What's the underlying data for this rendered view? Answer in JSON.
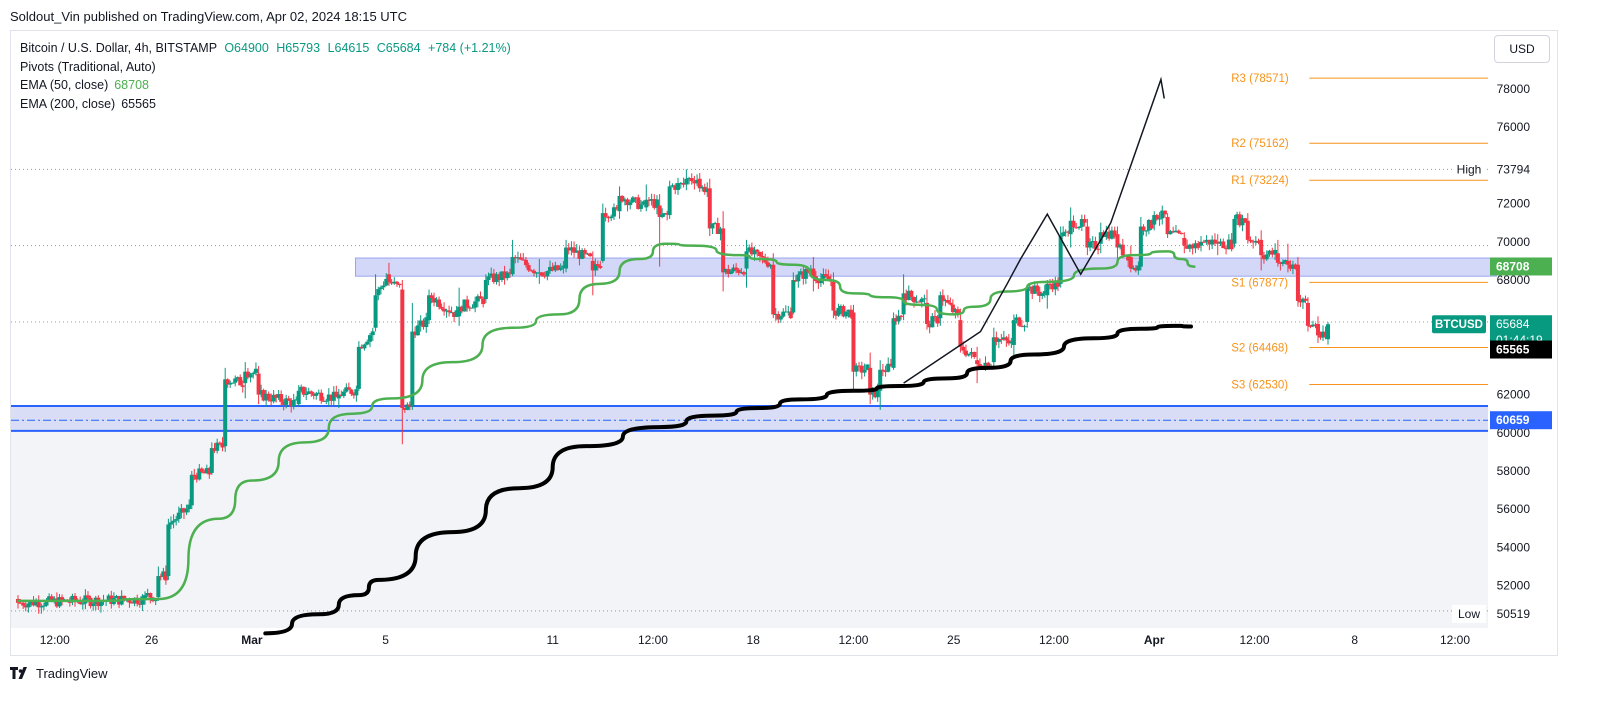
{
  "header": {
    "publisher_line": "Soldout_Vin published on TradingView.com, Apr 02, 2024 18:15 UTC"
  },
  "legend": {
    "symbol": "Bitcoin / U.S. Dollar, 4h, BITSTAMP",
    "open": "O64900",
    "high": "H65793",
    "low": "L64615",
    "close": "C65684",
    "change": "+784 (+1.21%)",
    "pivots": "Pivots (Traditional, Auto)",
    "ema50_label": "EMA (50, close)",
    "ema50_value": "68708",
    "ema200_label": "EMA (200, close)",
    "ema200_value": "65565"
  },
  "currency_button": "USD",
  "footer": {
    "brand": "TradingView"
  },
  "colors": {
    "up": "#089981",
    "down": "#f23645",
    "ema50": "#4caf50",
    "ema200": "#000000",
    "pivot": "#f7931a",
    "zone_fill": "#c5cbf5",
    "zone_border": "#2962ff"
  },
  "chart_data": {
    "type": "candlestick",
    "title": "Bitcoin / U.S. Dollar, 4h, BITSTAMP",
    "ylim": [
      49500,
      79500
    ],
    "y_ticks": [
      "78000",
      "76000",
      "72000",
      "70000",
      "68000",
      "62000",
      "60000",
      "58000",
      "56000",
      "54000",
      "52000"
    ],
    "x_ticks": [
      {
        "label": "12:00",
        "t": 0.55
      },
      {
        "label": "26",
        "t": 2.0
      },
      {
        "label": "Mar",
        "t": 3.5
      },
      {
        "label": "5",
        "t": 5.5
      },
      {
        "label": "11",
        "t": 8.0
      },
      {
        "label": "12:00",
        "t": 9.5
      },
      {
        "label": "18",
        "t": 11.0
      },
      {
        "label": "12:00",
        "t": 12.5
      },
      {
        "label": "25",
        "t": 14.0
      },
      {
        "label": "12:00",
        "t": 15.5
      },
      {
        "label": "Apr",
        "t": 17.0
      },
      {
        "label": "12:00",
        "t": 18.5
      },
      {
        "label": "8",
        "t": 20.0
      },
      {
        "label": "12:00",
        "t": 21.5
      }
    ],
    "x_range": [
      0,
      22.6
    ],
    "pivots": [
      {
        "name": "R3",
        "value": 78571,
        "label": "R3 (78571)"
      },
      {
        "name": "R2",
        "value": 75162,
        "label": "R2 (75162)"
      },
      {
        "name": "R1",
        "value": 73224,
        "label": "R1 (73224)"
      },
      {
        "name": "S1",
        "value": 67877,
        "label": "S1 (67877)"
      },
      {
        "name": "S2",
        "value": 64468,
        "label": "S2 (64468)"
      },
      {
        "name": "S3",
        "value": 62530,
        "label": "S3 (62530)"
      }
    ],
    "pivot_range": [
      17.0,
      22.0
    ],
    "dotted_levels": [
      73794,
      69800,
      65800
    ],
    "zones": [
      {
        "from": 68200,
        "to": 69150,
        "t_start": 5.05,
        "t_end": 22.0,
        "style": "lavender"
      },
      {
        "from": 60100,
        "to": 61400,
        "t_start": 0.0,
        "t_end": 22.0,
        "style": "blue"
      }
    ],
    "blue_dashdot_level": 60659,
    "ema50": [
      [
        0,
        51200
      ],
      [
        1,
        51200
      ],
      [
        2.1,
        51300
      ],
      [
        3,
        55500
      ],
      [
        3.5,
        57500
      ],
      [
        4.3,
        59500
      ],
      [
        5,
        61000
      ],
      [
        5.6,
        61800
      ],
      [
        6.5,
        63700
      ],
      [
        7.4,
        65500
      ],
      [
        8.1,
        66200
      ],
      [
        8.7,
        67800
      ],
      [
        9.3,
        69100
      ],
      [
        9.7,
        69900
      ],
      [
        10.1,
        69800
      ],
      [
        10.8,
        69300
      ],
      [
        11.1,
        69100
      ],
      [
        11.6,
        68800
      ],
      [
        12.1,
        68000
      ],
      [
        12.5,
        67300
      ],
      [
        13.0,
        67100
      ],
      [
        13.5,
        66700
      ],
      [
        14.0,
        66200
      ],
      [
        14.3,
        66600
      ],
      [
        14.8,
        67400
      ],
      [
        15.4,
        67900
      ],
      [
        16.2,
        68600
      ],
      [
        16.7,
        69300
      ],
      [
        17.2,
        69500
      ],
      [
        17.4,
        69100
      ],
      [
        17.6,
        68700
      ]
    ],
    "ema200": [
      [
        3.7,
        49500
      ],
      [
        4.5,
        50500
      ],
      [
        5.1,
        51500
      ],
      [
        5.4,
        52300
      ],
      [
        6.5,
        54800
      ],
      [
        7.5,
        57100
      ],
      [
        8.5,
        59300
      ],
      [
        9.6,
        60300
      ],
      [
        10.4,
        60900
      ],
      [
        11.1,
        61300
      ],
      [
        11.7,
        61750
      ],
      [
        12.5,
        62200
      ],
      [
        13.2,
        62450
      ],
      [
        13.9,
        62850
      ],
      [
        14.5,
        63400
      ],
      [
        15.2,
        64100
      ],
      [
        16.1,
        64950
      ],
      [
        16.8,
        65450
      ],
      [
        17.3,
        65600
      ],
      [
        17.55,
        65565
      ]
    ],
    "drawing": [
      [
        13.25,
        62600
      ],
      [
        14.4,
        65300
      ],
      [
        14.8,
        67800
      ],
      [
        15.0,
        69100
      ],
      [
        15.4,
        71450
      ],
      [
        15.9,
        68300
      ],
      [
        16.35,
        71000
      ],
      [
        16.75,
        75000
      ],
      [
        17.1,
        78500
      ],
      [
        17.15,
        77500
      ]
    ],
    "anchor_candles": [
      {
        "t": 0.0,
        "o": 51300,
        "h": 51500,
        "l": 50800,
        "c": 51100
      },
      {
        "t": 1.9,
        "o": 51300,
        "h": 51700,
        "l": 51000,
        "c": 51500
      },
      {
        "t": 2.1,
        "o": 51400,
        "h": 53000,
        "l": 51200,
        "c": 52500
      },
      {
        "t": 2.25,
        "o": 52500,
        "h": 55500,
        "l": 52300,
        "c": 55200
      },
      {
        "t": 2.6,
        "o": 56200,
        "h": 58000,
        "l": 56000,
        "c": 57800
      },
      {
        "t": 2.9,
        "o": 57900,
        "h": 59500,
        "l": 57800,
        "c": 59200
      },
      {
        "t": 3.1,
        "o": 59300,
        "h": 63400,
        "l": 59000,
        "c": 62800
      },
      {
        "t": 3.4,
        "o": 62600,
        "h": 63700,
        "l": 61800,
        "c": 63200
      },
      {
        "t": 3.6,
        "o": 63100,
        "h": 63500,
        "l": 61500,
        "c": 62000
      },
      {
        "t": 4.2,
        "o": 61500,
        "h": 62500,
        "l": 61400,
        "c": 62200
      },
      {
        "t": 4.8,
        "o": 61800,
        "h": 62300,
        "l": 61300,
        "c": 62000
      },
      {
        "t": 5.1,
        "o": 62300,
        "h": 64800,
        "l": 62200,
        "c": 64500
      },
      {
        "t": 5.35,
        "o": 65500,
        "h": 68300,
        "l": 65300,
        "c": 67200
      },
      {
        "t": 5.55,
        "o": 68300,
        "h": 68900,
        "l": 67700,
        "c": 67900
      },
      {
        "t": 5.75,
        "o": 67500,
        "h": 68000,
        "l": 59400,
        "c": 61300
      },
      {
        "t": 5.9,
        "o": 61400,
        "h": 66800,
        "l": 61200,
        "c": 65300
      },
      {
        "t": 6.15,
        "o": 65900,
        "h": 67500,
        "l": 65700,
        "c": 67200
      },
      {
        "t": 6.6,
        "o": 66100,
        "h": 67600,
        "l": 65600,
        "c": 66600
      },
      {
        "t": 7.0,
        "o": 67000,
        "h": 68300,
        "l": 66800,
        "c": 68000
      },
      {
        "t": 7.4,
        "o": 68300,
        "h": 70100,
        "l": 68200,
        "c": 69200
      },
      {
        "t": 7.8,
        "o": 68400,
        "h": 69100,
        "l": 67800,
        "c": 68400
      },
      {
        "t": 8.2,
        "o": 68600,
        "h": 70100,
        "l": 68400,
        "c": 69700
      },
      {
        "t": 8.6,
        "o": 69000,
        "h": 69500,
        "l": 67200,
        "c": 68500
      },
      {
        "t": 8.75,
        "o": 69000,
        "h": 72000,
        "l": 68900,
        "c": 71500
      },
      {
        "t": 9.0,
        "o": 71600,
        "h": 72900,
        "l": 71200,
        "c": 72400
      },
      {
        "t": 9.4,
        "o": 71800,
        "h": 73000,
        "l": 71600,
        "c": 72200
      },
      {
        "t": 9.6,
        "o": 71900,
        "h": 72500,
        "l": 68700,
        "c": 71300
      },
      {
        "t": 9.75,
        "o": 71400,
        "h": 73200,
        "l": 71200,
        "c": 72900
      },
      {
        "t": 10.0,
        "o": 73000,
        "h": 73794,
        "l": 72700,
        "c": 73300
      },
      {
        "t": 10.2,
        "o": 73300,
        "h": 73600,
        "l": 72600,
        "c": 72800
      },
      {
        "t": 10.35,
        "o": 72800,
        "h": 73300,
        "l": 70300,
        "c": 70700
      },
      {
        "t": 10.55,
        "o": 70700,
        "h": 71600,
        "l": 67400,
        "c": 68400
      },
      {
        "t": 10.9,
        "o": 68600,
        "h": 70100,
        "l": 67600,
        "c": 69500
      },
      {
        "t": 11.3,
        "o": 68800,
        "h": 69400,
        "l": 66000,
        "c": 66200
      },
      {
        "t": 11.6,
        "o": 66300,
        "h": 68400,
        "l": 66200,
        "c": 68000
      },
      {
        "t": 11.9,
        "o": 68600,
        "h": 69200,
        "l": 67400,
        "c": 68200
      },
      {
        "t": 12.2,
        "o": 67900,
        "h": 68400,
        "l": 66000,
        "c": 66400
      },
      {
        "t": 12.5,
        "o": 66300,
        "h": 66700,
        "l": 62200,
        "c": 63200
      },
      {
        "t": 12.75,
        "o": 63400,
        "h": 64200,
        "l": 61500,
        "c": 62000
      },
      {
        "t": 12.9,
        "o": 62200,
        "h": 63800,
        "l": 61200,
        "c": 63300
      },
      {
        "t": 13.1,
        "o": 63400,
        "h": 66300,
        "l": 63300,
        "c": 66000
      },
      {
        "t": 13.25,
        "o": 66200,
        "h": 68300,
        "l": 65900,
        "c": 67300
      },
      {
        "t": 13.6,
        "o": 66800,
        "h": 67500,
        "l": 65400,
        "c": 65700
      },
      {
        "t": 13.8,
        "o": 66000,
        "h": 67400,
        "l": 65600,
        "c": 67200
      },
      {
        "t": 14.1,
        "o": 65900,
        "h": 66500,
        "l": 64200,
        "c": 64500
      },
      {
        "t": 14.35,
        "o": 63800,
        "h": 64500,
        "l": 62600,
        "c": 63600
      },
      {
        "t": 14.6,
        "o": 63700,
        "h": 65500,
        "l": 63400,
        "c": 65000
      },
      {
        "t": 14.9,
        "o": 64600,
        "h": 66200,
        "l": 64000,
        "c": 65900
      },
      {
        "t": 15.1,
        "o": 65800,
        "h": 67700,
        "l": 65500,
        "c": 67600
      },
      {
        "t": 15.4,
        "o": 67200,
        "h": 68000,
        "l": 66500,
        "c": 67800
      },
      {
        "t": 15.6,
        "o": 67800,
        "h": 70800,
        "l": 67600,
        "c": 70300
      },
      {
        "t": 15.75,
        "o": 70400,
        "h": 71800,
        "l": 69700,
        "c": 71100
      },
      {
        "t": 16.0,
        "o": 70800,
        "h": 71200,
        "l": 69300,
        "c": 69700
      },
      {
        "t": 16.2,
        "o": 69900,
        "h": 71000,
        "l": 69400,
        "c": 70500
      },
      {
        "t": 16.45,
        "o": 70400,
        "h": 70800,
        "l": 69000,
        "c": 69700
      },
      {
        "t": 16.65,
        "o": 69200,
        "h": 69800,
        "l": 68400,
        "c": 68600
      },
      {
        "t": 16.8,
        "o": 68700,
        "h": 71300,
        "l": 68500,
        "c": 70800
      },
      {
        "t": 17.0,
        "o": 70900,
        "h": 71600,
        "l": 70600,
        "c": 71400
      },
      {
        "t": 17.2,
        "o": 71300,
        "h": 71500,
        "l": 70200,
        "c": 70400
      },
      {
        "t": 17.45,
        "o": 70200,
        "h": 70500,
        "l": 69400,
        "c": 69800
      },
      {
        "t": 17.7,
        "o": 69800,
        "h": 70300,
        "l": 69500,
        "c": 70000
      },
      {
        "t": 17.95,
        "o": 70000,
        "h": 70400,
        "l": 69300,
        "c": 69900
      },
      {
        "t": 18.2,
        "o": 69900,
        "h": 71400,
        "l": 69700,
        "c": 71200
      },
      {
        "t": 18.4,
        "o": 71100,
        "h": 71500,
        "l": 69900,
        "c": 70100
      },
      {
        "t": 18.6,
        "o": 70100,
        "h": 70600,
        "l": 68500,
        "c": 69300
      },
      {
        "t": 18.85,
        "o": 69400,
        "h": 70100,
        "l": 68700,
        "c": 68900
      },
      {
        "t": 19.0,
        "o": 69000,
        "h": 69900,
        "l": 68400,
        "c": 68800
      },
      {
        "t": 19.15,
        "o": 68800,
        "h": 69200,
        "l": 66600,
        "c": 66900
      },
      {
        "t": 19.3,
        "o": 66800,
        "h": 67100,
        "l": 65300,
        "c": 65600
      },
      {
        "t": 19.45,
        "o": 65700,
        "h": 66100,
        "l": 64700,
        "c": 65100
      },
      {
        "t": 19.6,
        "o": 64900,
        "h": 65793,
        "l": 64615,
        "c": 65684
      }
    ],
    "price_axis_labels": [
      {
        "value": 73794,
        "text": "73794",
        "tag": "High",
        "style": "plain"
      },
      {
        "value": 68708,
        "text": "68708",
        "style": "green"
      },
      {
        "value": 65684,
        "text": "65684",
        "symbol": "BTCUSD",
        "countdown": "01:44:19",
        "style": "teal"
      },
      {
        "value": 65565,
        "text": "65565",
        "style": "black"
      },
      {
        "value": 60659,
        "text": "60659",
        "style": "blue"
      },
      {
        "value": 50519,
        "text": "50519",
        "tag": "Low",
        "style": "plain"
      }
    ]
  }
}
